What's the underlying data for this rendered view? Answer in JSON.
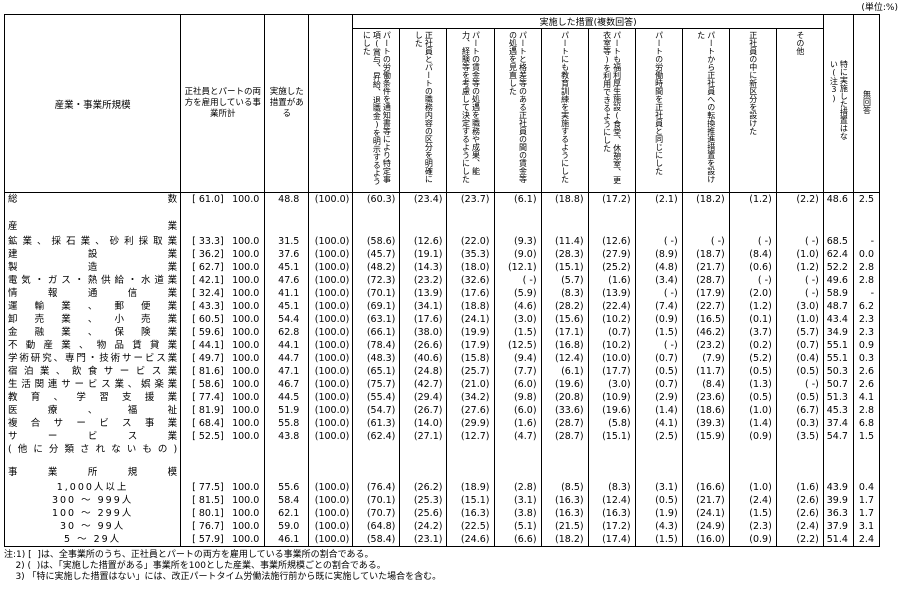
{
  "unit_label": "(単位:%)",
  "table": {
    "col_headers": {
      "industry_size": "産業・事業所規模",
      "both_employed": "正社員とパートの両方を雇用している事業所計",
      "has_measures": "実施した措置がある",
      "measures_group": "実施した措置(複数回答)",
      "no_measures": "特に実施した措置はない(注3)",
      "no_answer": "無回答"
    },
    "measure_headers": [
      "パートの労働条件を通知書等により特定事項(賞与、昇給、退職金)を明示するようにした",
      "正社員とパートの職務内容の区分を明確にした",
      "パートの賃金等の処遇を職務や成果、能力、経験等を考慮して決定するようにした",
      "パートと格差等のある正社員の間の賃金等の処遇を見直した",
      "パートにも教育訓練を実施するようにした",
      "パートも福利厚生施設(食堂、休憩室、更衣室等)を利用できるようにした",
      "パートの労働時間を正社員と同じにした",
      "パートから正社員への転換推進措置を設けた",
      "正社員の中に新区分を設けた",
      "その他"
    ],
    "rows": [
      {
        "type": "total",
        "label": "総数",
        "values": [
          "[ 61.0]",
          "100.0",
          "48.8",
          "(100.0)",
          "(60.3)",
          "(23.4)",
          "(23.7)",
          "(6.1)",
          "(18.8)",
          "(17.2)",
          "(2.1)",
          "(18.2)",
          "(1.2)",
          "(2.2)",
          "48.6",
          "2.5"
        ]
      },
      {
        "type": "section",
        "label": "産業",
        "values": []
      },
      {
        "type": "data",
        "label": "鉱業、採石業、砂利採取業",
        "values": [
          "[ 33.3]",
          "100.0",
          "31.5",
          "(100.0)",
          "(58.6)",
          "(12.6)",
          "(22.0)",
          "(9.3)",
          "(11.4)",
          "(12.6)",
          "( -)",
          "( -)",
          "( -)",
          "( -)",
          "68.5",
          "-"
        ]
      },
      {
        "type": "data",
        "label": "建設業",
        "values": [
          "[ 36.2]",
          "100.0",
          "37.6",
          "(100.0)",
          "(45.7)",
          "(19.1)",
          "(35.3)",
          "(9.0)",
          "(28.3)",
          "(27.9)",
          "(8.9)",
          "(18.7)",
          "(8.4)",
          "(1.0)",
          "62.4",
          "0.0"
        ]
      },
      {
        "type": "data",
        "label": "製造業",
        "values": [
          "[ 62.7]",
          "100.0",
          "45.1",
          "(100.0)",
          "(48.2)",
          "(14.3)",
          "(18.0)",
          "(12.1)",
          "(15.1)",
          "(25.2)",
          "(4.8)",
          "(21.7)",
          "(0.6)",
          "(1.2)",
          "52.2",
          "2.8"
        ]
      },
      {
        "type": "data",
        "label": "電気・ガス・熱供給・水道業",
        "values": [
          "[ 42.1]",
          "100.0",
          "47.6",
          "(100.0)",
          "(72.3)",
          "(23.2)",
          "(32.6)",
          "( -)",
          "(5.7)",
          "(1.6)",
          "(3.4)",
          "(28.7)",
          "( -)",
          "( -)",
          "49.6",
          "2.8"
        ]
      },
      {
        "type": "data",
        "label": "情報通信業",
        "values": [
          "[ 32.4]",
          "100.0",
          "41.1",
          "(100.0)",
          "(70.1)",
          "(13.9)",
          "(17.6)",
          "(5.9)",
          "(8.3)",
          "(13.9)",
          "( -)",
          "(17.9)",
          "(2.0)",
          "( -)",
          "58.9",
          "-"
        ]
      },
      {
        "type": "data",
        "label": "運輸業、郵便業",
        "values": [
          "[ 43.3]",
          "100.0",
          "45.1",
          "(100.0)",
          "(69.1)",
          "(34.1)",
          "(18.8)",
          "(4.6)",
          "(28.2)",
          "(22.4)",
          "(7.4)",
          "(22.7)",
          "(1.2)",
          "(3.0)",
          "48.7",
          "6.2"
        ]
      },
      {
        "type": "data",
        "label": "卸売業、小売業",
        "values": [
          "[ 60.5]",
          "100.0",
          "54.4",
          "(100.0)",
          "(63.1)",
          "(17.6)",
          "(24.1)",
          "(3.0)",
          "(15.6)",
          "(10.2)",
          "(0.9)",
          "(16.5)",
          "(0.1)",
          "(1.0)",
          "43.4",
          "2.3"
        ]
      },
      {
        "type": "data",
        "label": "金融業、保険業",
        "values": [
          "[ 59.6]",
          "100.0",
          "62.8",
          "(100.0)",
          "(66.1)",
          "(38.0)",
          "(19.9)",
          "(1.5)",
          "(17.1)",
          "(0.7)",
          "(1.5)",
          "(46.2)",
          "(3.7)",
          "(5.7)",
          "34.9",
          "2.3"
        ]
      },
      {
        "type": "data",
        "label": "不動産業、物品賃貸業",
        "values": [
          "[ 44.1]",
          "100.0",
          "44.1",
          "(100.0)",
          "(78.4)",
          "(26.6)",
          "(17.9)",
          "(12.5)",
          "(16.8)",
          "(10.2)",
          "( -)",
          "(23.2)",
          "(0.2)",
          "(0.7)",
          "55.1",
          "0.9"
        ]
      },
      {
        "type": "data",
        "label": "学術研究、専門・技術サービス業",
        "values": [
          "[ 49.7]",
          "100.0",
          "44.7",
          "(100.0)",
          "(48.3)",
          "(40.6)",
          "(15.8)",
          "(9.4)",
          "(12.4)",
          "(10.0)",
          "(0.7)",
          "(7.9)",
          "(5.2)",
          "(0.4)",
          "55.1",
          "0.3"
        ]
      },
      {
        "type": "data",
        "label": "宿泊業、飲食サービス業",
        "values": [
          "[ 81.6]",
          "100.0",
          "47.1",
          "(100.0)",
          "(65.1)",
          "(24.8)",
          "(25.7)",
          "(7.7)",
          "(6.1)",
          "(17.7)",
          "(0.5)",
          "(11.7)",
          "(0.5)",
          "(0.5)",
          "50.3",
          "2.6"
        ]
      },
      {
        "type": "data",
        "label": "生活関連サービス業、娯楽業",
        "values": [
          "[ 58.6]",
          "100.0",
          "46.7",
          "(100.0)",
          "(75.7)",
          "(42.7)",
          "(21.0)",
          "(6.0)",
          "(19.6)",
          "(3.0)",
          "(0.7)",
          "(8.4)",
          "(1.3)",
          "( -)",
          "50.7",
          "2.6"
        ]
      },
      {
        "type": "data",
        "label": "教育、学習支援業",
        "values": [
          "[ 77.4]",
          "100.0",
          "44.5",
          "(100.0)",
          "(55.4)",
          "(29.4)",
          "(34.2)",
          "(9.8)",
          "(20.8)",
          "(10.9)",
          "(2.9)",
          "(23.6)",
          "(0.5)",
          "(0.5)",
          "51.3",
          "4.1"
        ]
      },
      {
        "type": "data",
        "label": "医療、福祉",
        "values": [
          "[ 81.9]",
          "100.0",
          "51.9",
          "(100.0)",
          "(54.7)",
          "(26.7)",
          "(27.6)",
          "(6.0)",
          "(33.6)",
          "(19.6)",
          "(1.4)",
          "(18.6)",
          "(1.0)",
          "(6.7)",
          "45.3",
          "2.8"
        ]
      },
      {
        "type": "data",
        "label": "複合サービス事業",
        "values": [
          "[ 68.4]",
          "100.0",
          "55.8",
          "(100.0)",
          "(61.3)",
          "(14.0)",
          "(29.9)",
          "(1.6)",
          "(28.7)",
          "(5.8)",
          "(4.1)",
          "(39.3)",
          "(1.4)",
          "(0.3)",
          "37.4",
          "6.8"
        ]
      },
      {
        "type": "data",
        "label": "サービス業",
        "label2": "(他に分類されないもの)",
        "values": [
          "[ 52.5]",
          "100.0",
          "43.8",
          "(100.0)",
          "(62.4)",
          "(27.1)",
          "(12.7)",
          "(4.7)",
          "(28.7)",
          "(15.1)",
          "(2.5)",
          "(15.9)",
          "(0.9)",
          "(3.5)",
          "54.7",
          "1.5"
        ]
      },
      {
        "type": "section",
        "label": "事業所規模",
        "gap": true,
        "values": []
      },
      {
        "type": "size",
        "label": "1,000人以上",
        "values": [
          "[ 77.5]",
          "100.0",
          "55.6",
          "(100.0)",
          "(76.4)",
          "(26.2)",
          "(18.9)",
          "(2.8)",
          "(8.5)",
          "(8.3)",
          "(3.1)",
          "(16.6)",
          "(1.0)",
          "(1.6)",
          "43.9",
          "0.4"
        ]
      },
      {
        "type": "size",
        "label": "300 〜 999人",
        "values": [
          "[ 81.5]",
          "100.0",
          "58.4",
          "(100.0)",
          "(70.1)",
          "(25.3)",
          "(15.1)",
          "(3.1)",
          "(16.3)",
          "(12.4)",
          "(0.5)",
          "(21.7)",
          "(2.4)",
          "(2.6)",
          "39.9",
          "1.7"
        ]
      },
      {
        "type": "size",
        "label": "100 〜 299人",
        "values": [
          "[ 80.1]",
          "100.0",
          "62.1",
          "(100.0)",
          "(70.7)",
          "(25.6)",
          "(16.3)",
          "(3.8)",
          "(16.3)",
          "(16.3)",
          "(1.9)",
          "(24.1)",
          "(1.5)",
          "(2.6)",
          "36.3",
          "1.7"
        ]
      },
      {
        "type": "size",
        "label": "30 〜 99人",
        "values": [
          "[ 76.7]",
          "100.0",
          "59.0",
          "(100.0)",
          "(64.8)",
          "(24.2)",
          "(22.5)",
          "(5.1)",
          "(21.5)",
          "(17.2)",
          "(4.3)",
          "(24.9)",
          "(2.3)",
          "(2.4)",
          "37.9",
          "3.1"
        ]
      },
      {
        "type": "size",
        "label": "5 〜 29人",
        "values": [
          "[ 57.9]",
          "100.0",
          "46.1",
          "(100.0)",
          "(58.4)",
          "(23.1)",
          "(24.6)",
          "(6.6)",
          "(18.2)",
          "(17.4)",
          "(1.5)",
          "(16.0)",
          "(0.9)",
          "(2.2)",
          "51.4",
          "2.4"
        ]
      }
    ]
  },
  "notes": {
    "line1": "注:1) [  ]は、全事業所のうち、正社員とパートの両方を雇用している事業所の割合である。",
    "line2": "    2) (  )は、「実施した措置がある」事業所を100とした産業、事業所規模ごとの割合である。",
    "line3": "    3) 「特に実施した措置はない」には、改正パートタイム労働法施行前から既に実施していた場合を含む。"
  }
}
